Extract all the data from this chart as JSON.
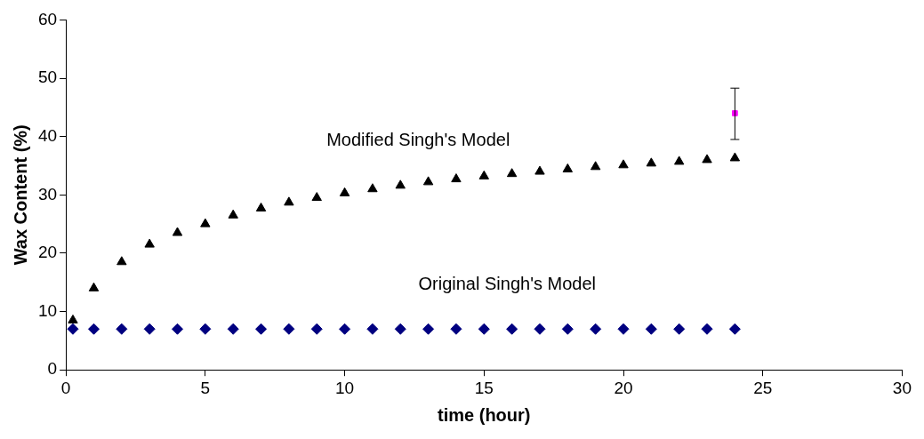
{
  "chart_data": {
    "type": "scatter",
    "xlabel": "time (hour)",
    "ylabel": "Wax Content (%)",
    "xlim": [
      0,
      30
    ],
    "xticks": [
      0,
      5,
      10,
      15,
      20,
      25,
      30
    ],
    "ylim": [
      0,
      60
    ],
    "yticks": [
      0,
      10,
      20,
      30,
      40,
      50,
      60
    ],
    "grid": false,
    "legend": false,
    "series": [
      {
        "name": "Modified Singh's Model",
        "color": "#000000",
        "marker": "triangle",
        "x": [
          0.25,
          1,
          2,
          3,
          4,
          5,
          6,
          7,
          8,
          9,
          10,
          11,
          12,
          13,
          14,
          15,
          16,
          17,
          18,
          19,
          20,
          21,
          22,
          23,
          24
        ],
        "values": [
          8.5,
          14,
          18.5,
          21.5,
          23.5,
          25,
          26.5,
          27.7,
          28.7,
          29.5,
          30.3,
          31,
          31.6,
          32.2,
          32.7,
          33.2,
          33.6,
          34,
          34.4,
          34.8,
          35.1,
          35.4,
          35.7,
          36,
          36.3
        ]
      },
      {
        "name": "Original Singh's Model",
        "color": "#000080",
        "marker": "diamond",
        "x": [
          0.25,
          1,
          2,
          3,
          4,
          5,
          6,
          7,
          8,
          9,
          10,
          11,
          12,
          13,
          14,
          15,
          16,
          17,
          18,
          19,
          20,
          21,
          22,
          23,
          24
        ],
        "values": [
          7,
          7,
          7,
          7,
          7,
          7,
          7,
          7,
          7,
          7,
          7,
          7,
          7,
          7,
          7,
          7,
          7,
          7,
          7,
          7,
          7,
          7,
          7,
          7,
          7
        ]
      },
      {
        "color": "#ff00ff",
        "marker": "square",
        "x": [
          24
        ],
        "values": [
          44
        ],
        "errors": [
          [
            39.5,
            48.3
          ]
        ]
      }
    ]
  }
}
